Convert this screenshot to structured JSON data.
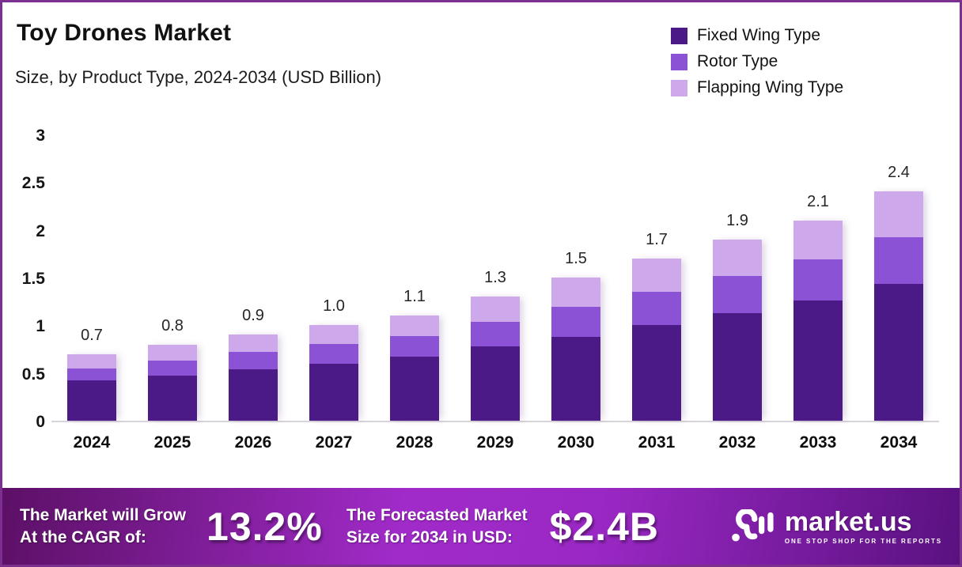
{
  "header": {
    "title": "Toy Drones Market",
    "subtitle": "Size, by Product Type, 2024-2034 (USD Billion)"
  },
  "chart_data": {
    "type": "bar",
    "stacked": true,
    "title": "Toy Drones Market Size, by Product Type, 2024-2034 (USD Billion)",
    "categories": [
      "2024",
      "2025",
      "2026",
      "2027",
      "2028",
      "2029",
      "2030",
      "2031",
      "2032",
      "2033",
      "2034"
    ],
    "series": [
      {
        "name": "Fixed Wing Type",
        "color": "#4b1a87",
        "values": [
          0.42,
          0.47,
          0.54,
          0.6,
          0.67,
          0.78,
          0.88,
          1.0,
          1.13,
          1.26,
          1.43
        ]
      },
      {
        "name": "Rotor Type",
        "color": "#8b52d6",
        "values": [
          0.13,
          0.16,
          0.18,
          0.2,
          0.22,
          0.26,
          0.31,
          0.35,
          0.39,
          0.43,
          0.49
        ]
      },
      {
        "name": "Flapping Wing Type",
        "color": "#cda9ec",
        "values": [
          0.15,
          0.17,
          0.18,
          0.2,
          0.21,
          0.26,
          0.31,
          0.35,
          0.38,
          0.41,
          0.48
        ]
      }
    ],
    "totals": [
      "0.7",
      "0.8",
      "0.9",
      "1.0",
      "1.1",
      "1.3",
      "1.5",
      "1.7",
      "1.9",
      "2.1",
      "2.4"
    ],
    "yticks": [
      "0",
      "0.5",
      "1",
      "1.5",
      "2",
      "2.5",
      "3"
    ],
    "ylim": [
      0,
      3
    ],
    "xlabel": "",
    "ylabel": "USD Billion",
    "grid": false,
    "legend_position": "top-right"
  },
  "footer": {
    "cagr_label_line1": "The Market will Grow",
    "cagr_label_line2": "At the CAGR of:",
    "cagr_value": "13.2%",
    "forecast_label_line1": "The Forecasted Market",
    "forecast_label_line2": "Size for 2034 in USD:",
    "forecast_value": "$2.4B",
    "brand_name": "market.us",
    "brand_tagline": "ONE STOP SHOP FOR THE REPORTS"
  },
  "colors": {
    "frame_border": "#7b2f8e",
    "background": "#ffffff",
    "baseline": "#d8d3da",
    "banner_gradient": [
      "#5c1066",
      "#a12bc9",
      "#9a28c4",
      "#5a1180"
    ],
    "text_dark": "#111111",
    "text_light": "#ffffff"
  }
}
